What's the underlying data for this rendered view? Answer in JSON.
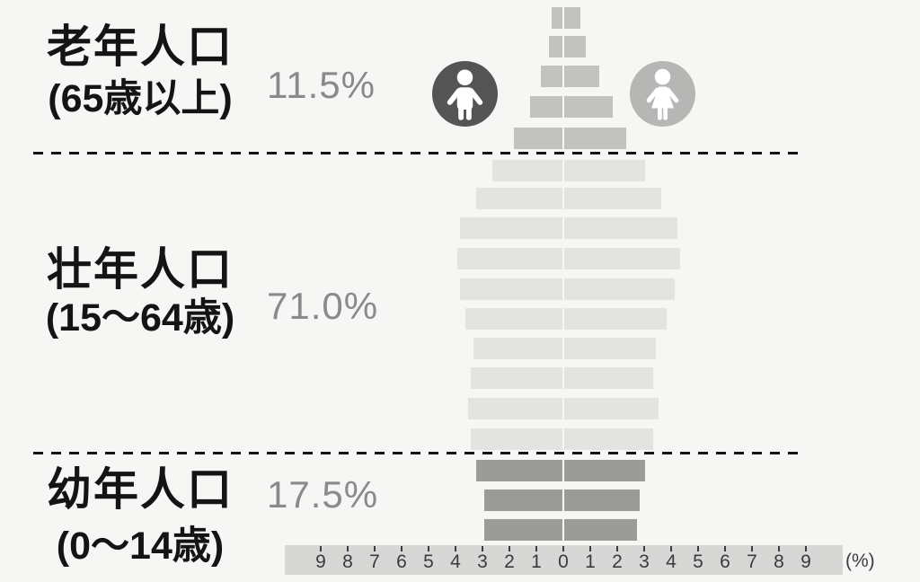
{
  "chart_data": {
    "type": "bar",
    "subtype": "population-pyramid",
    "orientation": "horizontal; male bars extend left, female bars extend right from center",
    "unit": "%",
    "grid": false,
    "axis": {
      "tick_labels": [
        "9",
        "8",
        "7",
        "6",
        "5",
        "4",
        "3",
        "2",
        "1",
        "0",
        "1",
        "2",
        "3",
        "4",
        "5",
        "6",
        "7",
        "8",
        "9"
      ],
      "max_each_side": 9,
      "unit_label": "(%)"
    },
    "sections": [
      {
        "id": "elderly",
        "label": "老年人口",
        "age_range": "(65歳以上)",
        "share_label": "11.5%",
        "bar_color": "#c2c2c0",
        "rows_top_to_bottom": "oldest age group first",
        "rows": [
          {
            "male": 0.4,
            "female": 0.6
          },
          {
            "male": 0.5,
            "female": 0.8
          },
          {
            "male": 0.8,
            "female": 1.3
          },
          {
            "male": 1.2,
            "female": 1.8
          },
          {
            "male": 1.8,
            "female": 2.3
          }
        ]
      },
      {
        "id": "working",
        "label": "壮年人口",
        "age_range": "(15〜64歳)",
        "share_label": "71.0%",
        "bar_color": "#e3e3e1",
        "rows": [
          {
            "male": 2.6,
            "female": 3.0
          },
          {
            "male": 3.2,
            "female": 3.6
          },
          {
            "male": 3.8,
            "female": 4.2
          },
          {
            "male": 3.9,
            "female": 4.3
          },
          {
            "male": 3.8,
            "female": 4.1
          },
          {
            "male": 3.6,
            "female": 3.8
          },
          {
            "male": 3.3,
            "female": 3.4
          },
          {
            "male": 3.4,
            "female": 3.3
          },
          {
            "male": 3.5,
            "female": 3.5
          },
          {
            "male": 3.4,
            "female": 3.3
          }
        ]
      },
      {
        "id": "young",
        "label": "幼年人口",
        "age_range": "(0〜14歳)",
        "share_label": "17.5%",
        "bar_color": "#9b9b99",
        "rows": [
          {
            "male": 3.2,
            "female": 3.0
          },
          {
            "male": 2.9,
            "female": 2.8
          },
          {
            "male": 2.9,
            "female": 2.7
          }
        ]
      }
    ],
    "icons": {
      "male": {
        "name": "male-icon",
        "circle_color": "#545454",
        "figure_color": "#ffffff"
      },
      "female": {
        "name": "female-icon",
        "circle_color": "#b6b6b4",
        "figure_color": "#ffffff"
      }
    },
    "colors": {
      "background": "#f6f6f4",
      "label_text": "#141414",
      "share_text": "#8a8a8a",
      "axis_band": "#d7d7d5",
      "axis_text": "#3b3b3b",
      "dashed_line": "#141414"
    }
  }
}
